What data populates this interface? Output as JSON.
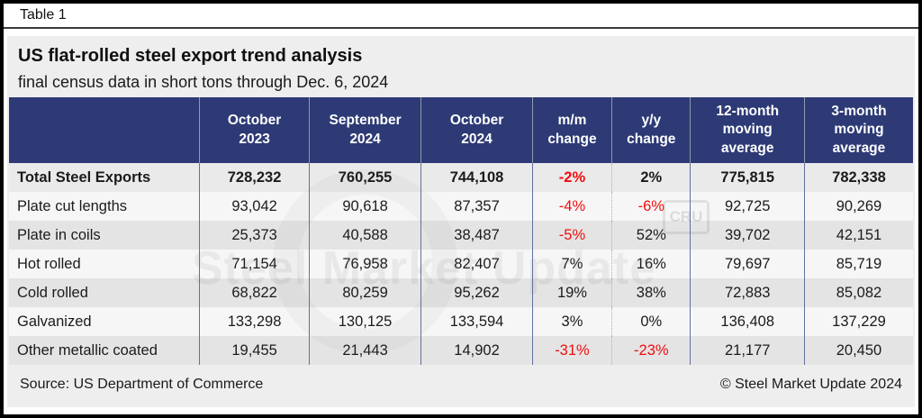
{
  "tab_label": "Table 1",
  "chart_data": {
    "type": "table",
    "title": "US flat-rolled steel export trend analysis",
    "subtitle": "final census data in short tons through Dec. 6, 2024",
    "columns": [
      "",
      "October\n2023",
      "September\n2024",
      "October\n2024",
      "m/m\nchange",
      "y/y\nchange",
      "12-month\nmoving\naverage",
      "3-month\nmoving\naverage"
    ],
    "rows": [
      {
        "label": "Total Steel Exports",
        "values": [
          "728,232",
          "760,255",
          "744,108",
          "-2%",
          "2%",
          "775,815",
          "782,338"
        ]
      },
      {
        "label": "Plate cut lengths",
        "values": [
          "93,042",
          "90,618",
          "87,357",
          "-4%",
          "-6%",
          "92,725",
          "90,269"
        ]
      },
      {
        "label": "Plate in coils",
        "values": [
          "25,373",
          "40,588",
          "38,487",
          "-5%",
          "52%",
          "39,702",
          "42,151"
        ]
      },
      {
        "label": "Hot rolled",
        "values": [
          "71,154",
          "76,958",
          "82,407",
          "7%",
          "16%",
          "79,697",
          "85,719"
        ]
      },
      {
        "label": "Cold rolled",
        "values": [
          "68,822",
          "80,259",
          "95,262",
          "19%",
          "38%",
          "72,883",
          "85,082"
        ]
      },
      {
        "label": "Galvanized",
        "values": [
          "133,298",
          "130,125",
          "133,594",
          "3%",
          "0%",
          "136,408",
          "137,229"
        ]
      },
      {
        "label": "Other metallic coated",
        "values": [
          "19,455",
          "21,443",
          "14,902",
          "-31%",
          "-23%",
          "21,177",
          "20,450"
        ]
      }
    ],
    "legend_position": "none",
    "grid": "column-separators"
  },
  "footer": {
    "source": "Source: US Department of Commerce",
    "copyright": "© Steel Market Update 2024"
  },
  "watermark": {
    "text": "Steel Market Update",
    "badge": "CRU"
  },
  "colors": {
    "header_bg": "#2d3a75",
    "header_text": "#ffffff",
    "negative_value": "#f20d0d",
    "column_separator": "#61719f",
    "panel_bg": "#eeeeee",
    "row_stripe": "#e4e4e4",
    "row_light": "#f6f6f6"
  }
}
